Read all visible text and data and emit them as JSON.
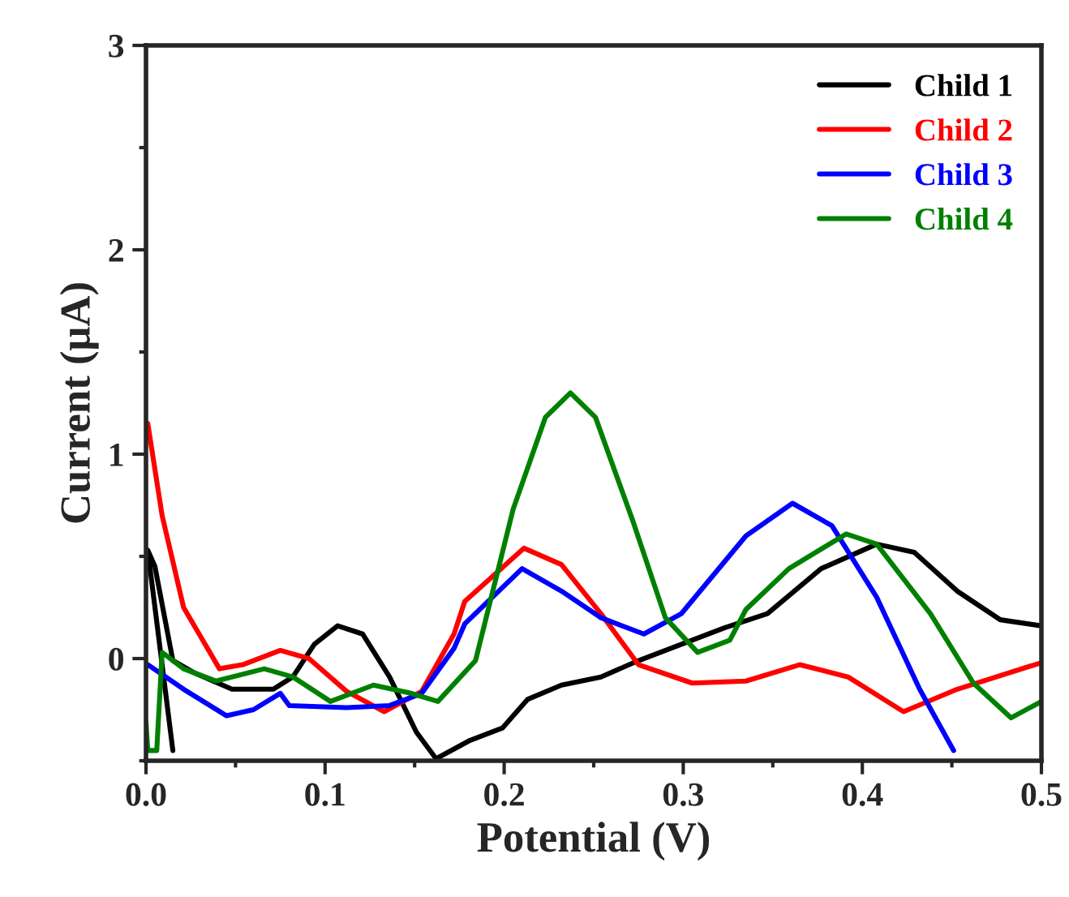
{
  "chart_data": {
    "type": "line",
    "xlabel": "Potential (V)",
    "ylabel": "Current (μA)",
    "xlim": [
      0,
      0.5
    ],
    "ylim": [
      -0.5,
      3
    ],
    "xticks": [
      {
        "value": 0,
        "label": "0.0"
      },
      0.1,
      0.2,
      0.3,
      0.4,
      0.5
    ],
    "yticks": [
      0,
      1,
      2,
      3
    ],
    "grid": false,
    "legend": "top right",
    "line_style": "solid",
    "marker": "none",
    "series": [
      {
        "name": "Child 1",
        "color": "#000000",
        "x": [
          0.015,
          0.001,
          0.005,
          0.015,
          0.027,
          0.048,
          0.071,
          0.082,
          0.094,
          0.107,
          0.121,
          0.136,
          0.151,
          0.162,
          0.181,
          0.199,
          0.213,
          0.232,
          0.254,
          0.275,
          0.299,
          0.323,
          0.347,
          0.377,
          0.408,
          0.429,
          0.453,
          0.477,
          0.5
        ],
        "values": [
          -0.45,
          0.53,
          0.45,
          -0.01,
          -0.07,
          -0.15,
          -0.15,
          -0.09,
          0.07,
          0.16,
          0.12,
          -0.09,
          -0.36,
          -0.49,
          -0.4,
          -0.34,
          -0.2,
          -0.13,
          -0.09,
          -0.01,
          0.07,
          0.15,
          0.22,
          0.44,
          0.56,
          0.52,
          0.33,
          0.19,
          0.16
        ]
      },
      {
        "name": "Child 2",
        "color": "#ff0000",
        "x": [
          0.001,
          0.009,
          0.021,
          0.041,
          0.054,
          0.075,
          0.091,
          0.112,
          0.133,
          0.154,
          0.172,
          0.178,
          0.211,
          0.232,
          0.254,
          0.275,
          0.305,
          0.335,
          0.365,
          0.392,
          0.423,
          0.453,
          0.5
        ],
        "values": [
          1.15,
          0.7,
          0.25,
          -0.05,
          -0.03,
          0.04,
          0.0,
          -0.16,
          -0.26,
          -0.16,
          0.12,
          0.28,
          0.54,
          0.46,
          0.22,
          -0.03,
          -0.12,
          -0.11,
          -0.03,
          -0.09,
          -0.26,
          -0.15,
          -0.02
        ]
      },
      {
        "name": "Child 3",
        "color": "#0000ff",
        "x": [
          0.001,
          0.021,
          0.045,
          0.06,
          0.075,
          0.08,
          0.112,
          0.136,
          0.154,
          0.172,
          0.178,
          0.21,
          0.232,
          0.254,
          0.278,
          0.299,
          0.335,
          0.361,
          0.383,
          0.408,
          0.432,
          0.451
        ],
        "values": [
          -0.03,
          -0.15,
          -0.28,
          -0.25,
          -0.17,
          -0.23,
          -0.24,
          -0.23,
          -0.17,
          0.05,
          0.17,
          0.44,
          0.33,
          0.2,
          0.12,
          0.22,
          0.6,
          0.76,
          0.65,
          0.3,
          -0.15,
          -0.45
        ]
      },
      {
        "name": "Child 4",
        "color": "#008000",
        "x": [
          0.0,
          0.001,
          0.006,
          0.009,
          0.021,
          0.039,
          0.066,
          0.082,
          0.103,
          0.127,
          0.148,
          0.163,
          0.184,
          0.205,
          0.223,
          0.237,
          0.251,
          0.272,
          0.29,
          0.308,
          0.326,
          0.335,
          0.359,
          0.391,
          0.408,
          0.438,
          0.462,
          0.483,
          0.5
        ],
        "values": [
          -0.31,
          -0.45,
          -0.45,
          0.03,
          -0.05,
          -0.11,
          -0.05,
          -0.09,
          -0.21,
          -0.13,
          -0.17,
          -0.21,
          -0.01,
          0.73,
          1.18,
          1.3,
          1.18,
          0.67,
          0.2,
          0.03,
          0.09,
          0.24,
          0.44,
          0.61,
          0.56,
          0.22,
          -0.12,
          -0.29,
          -0.21
        ]
      }
    ]
  }
}
